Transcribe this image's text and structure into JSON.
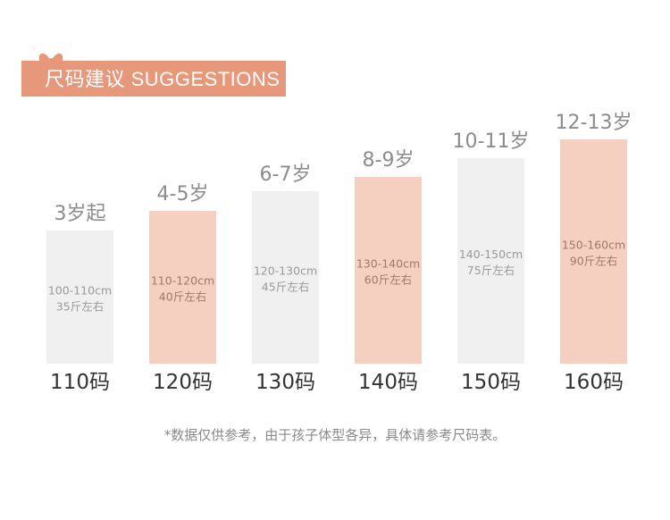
{
  "header": {
    "title": "尺码建议 SUGGESTIONS",
    "decoration_icon": "bow-icon",
    "accent_color": "#e8987a"
  },
  "chart_data": {
    "type": "bar",
    "title": "尺码建议 SUGGESTIONS",
    "categories": [
      "110码",
      "120码",
      "130码",
      "140码",
      "150码",
      "160码"
    ],
    "values": [
      149,
      171,
      193,
      209,
      230,
      251
    ],
    "ylim": [
      0,
      260
    ],
    "top_labels": [
      "3岁起",
      "4-5岁",
      "6-7岁",
      "8-9岁",
      "10-11岁",
      "12-13岁"
    ],
    "inner_labels": [
      [
        "100-110cm",
        "35斤左右"
      ],
      [
        "110-120cm",
        "40斤左右"
      ],
      [
        "120-130cm",
        "45斤左右"
      ],
      [
        "130-140cm",
        "60斤左右"
      ],
      [
        "140-150cm",
        "75斤左右"
      ],
      [
        "150-160cm",
        "90斤左右"
      ]
    ],
    "bar_colors": [
      "#f0f0f0",
      "#f5cfbf",
      "#f0f0f0",
      "#f5cfbf",
      "#f0f0f0",
      "#f5cfbf"
    ],
    "grid": false,
    "legend": "none"
  },
  "footnote": "*数据仅供参考，由于孩子体型各异，具体请参考尺码表。"
}
